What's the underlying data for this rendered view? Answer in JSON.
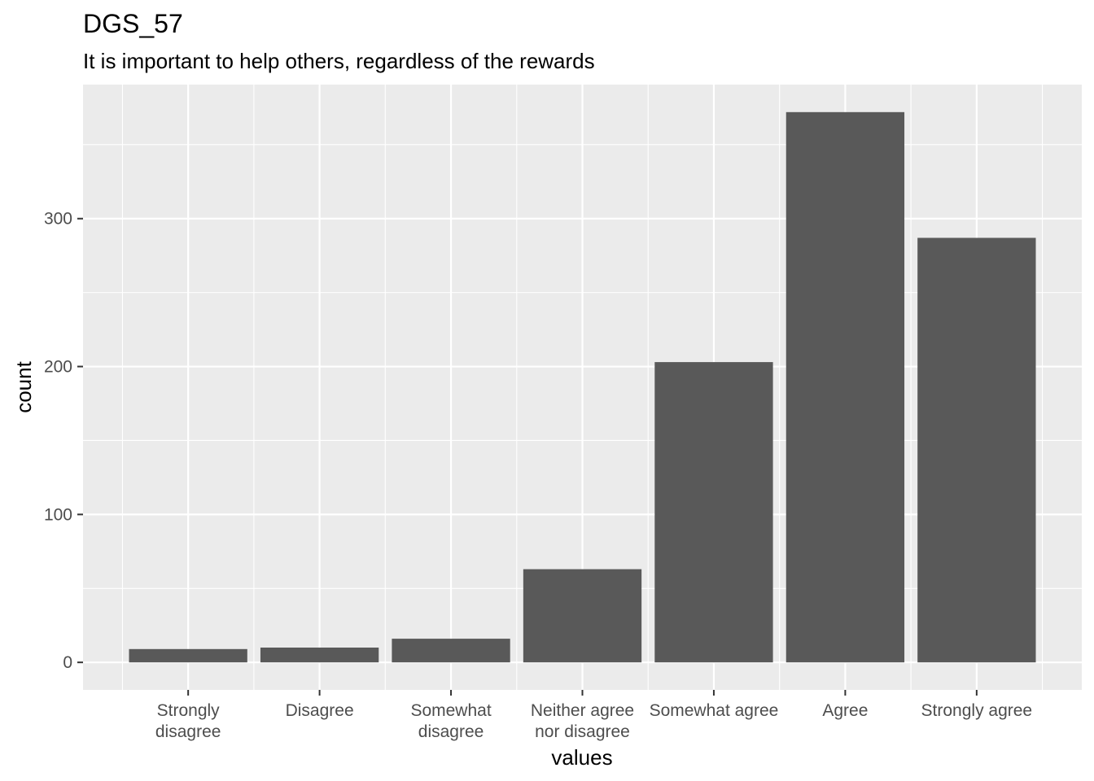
{
  "chart_data": {
    "type": "bar",
    "title": "DGS_57",
    "subtitle": "It is important to help others, regardless of the rewards",
    "xlabel": "values",
    "ylabel": "count",
    "categories": [
      [
        "Strongly",
        "disagree"
      ],
      [
        "Disagree"
      ],
      [
        "Somewhat",
        "disagree"
      ],
      [
        "Neither agree",
        "nor disagree"
      ],
      [
        "Somewhat agree"
      ],
      [
        "Agree"
      ],
      [
        "Strongly agree"
      ]
    ],
    "values": [
      9,
      10,
      16,
      63,
      203,
      372,
      287
    ],
    "ylim": [
      -18.6,
      390.6
    ],
    "yticks": [
      0,
      100,
      200,
      300
    ],
    "grid": true,
    "legend": "none",
    "colors": {
      "panel": "#ebebeb",
      "grid": "#ffffff",
      "bar": "#595959"
    }
  }
}
